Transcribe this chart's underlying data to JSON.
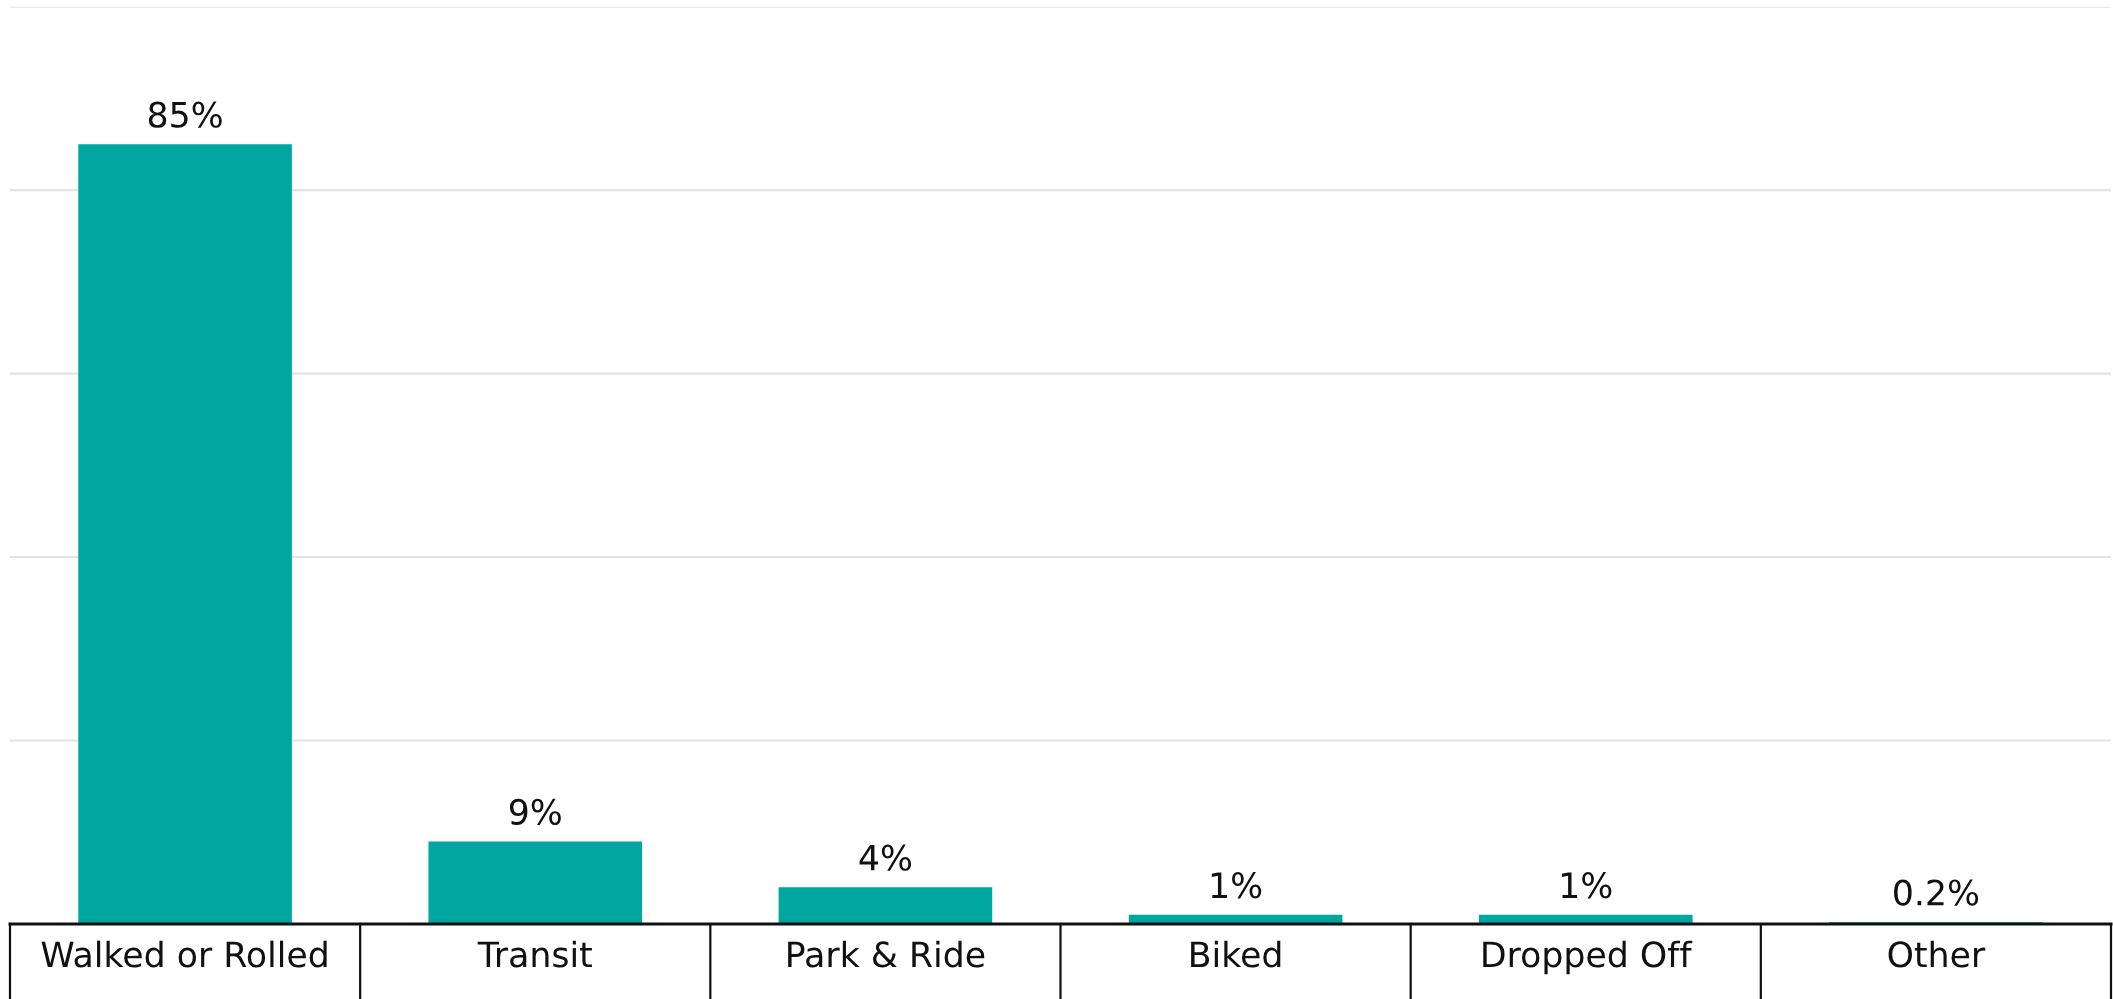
{
  "chart_data": {
    "type": "bar",
    "categories": [
      "Walked or Rolled",
      "Transit",
      "Park & Ride",
      "Biked",
      "Dropped Off",
      "Other"
    ],
    "values": [
      85,
      9,
      4,
      1,
      1,
      0.2
    ],
    "color": "#00a6a0",
    "value_labels": [
      "85%",
      "9%",
      "4%",
      "1%",
      "1%",
      "0.2%"
    ],
    "ylim": [
      0,
      100
    ],
    "yticks": [
      {
        "value": 0,
        "label": null
      },
      {
        "value": 20,
        "label": null
      },
      {
        "value": 40,
        "label": null
      },
      {
        "value": 60,
        "label": null
      },
      {
        "value": 80,
        "label": null
      },
      {
        "value": 100,
        "label": null
      }
    ],
    "grid": "y",
    "tick_labels": "x"
  }
}
